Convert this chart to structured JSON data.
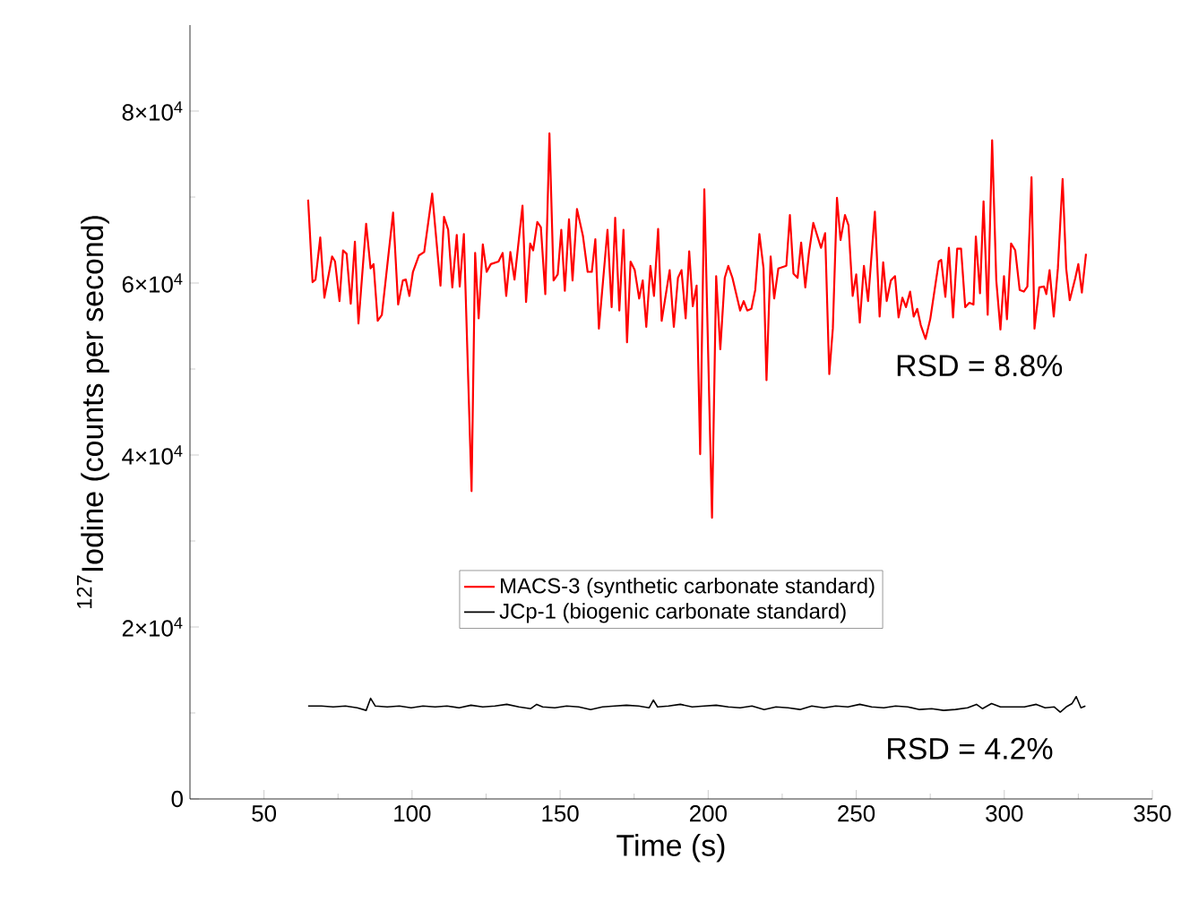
{
  "chart_data": {
    "type": "line",
    "xlabel": "Time (s)",
    "ylabel": "$^{127}$Iodine (counts per second)",
    "xlim": [
      25,
      350
    ],
    "ylim": [
      0,
      90000
    ],
    "xticks": [
      50,
      100,
      150,
      200,
      250,
      300,
      350
    ],
    "yticks": [
      0,
      {
        "value": 20000,
        "label": "2×10$^{4}$"
      },
      {
        "value": 40000,
        "label": "4×10$^{4}$"
      },
      {
        "value": 60000,
        "label": "6×10$^{4}$"
      },
      {
        "value": 80000,
        "label": "8×10$^{4}$"
      }
    ],
    "legend": "bottom",
    "series": [
      {
        "name": "MACS-3 (synthetic carbonate standard)",
        "color": "#ff0000",
        "x": [
          64.9,
          66.4,
          67.4,
          69.0,
          70.4,
          73.0,
          74.0,
          75.5,
          76.7,
          77.9,
          79.3,
          80.7,
          81.9,
          84.5,
          86.0,
          87.0,
          88.4,
          89.8,
          93.6,
          95.3,
          96.9,
          97.9,
          99.1,
          100.3,
          102.3,
          104.1,
          106.8,
          109.6,
          110.8,
          112.2,
          113.6,
          115.1,
          116.1,
          117.5,
          120.1,
          121.3,
          122.5,
          123.9,
          125.2,
          126.6,
          129.2,
          130.6,
          131.8,
          133.2,
          134.6,
          137.3,
          138.5,
          139.9,
          140.9,
          142.3,
          143.5,
          145.0,
          146.4,
          147.8,
          149.2,
          150.4,
          151.6,
          153.0,
          154.2,
          155.7,
          157.7,
          159.3,
          160.7,
          161.9,
          163.1,
          166.0,
          167.4,
          168.6,
          170.0,
          171.4,
          172.6,
          173.8,
          175.2,
          176.7,
          177.9,
          179.1,
          180.5,
          181.7,
          183.1,
          184.3,
          187.0,
          188.4,
          189.8,
          191.0,
          192.4,
          193.6,
          194.8,
          196.1,
          197.3,
          198.7,
          201.3,
          202.7,
          204.1,
          205.6,
          206.8,
          208.2,
          210.8,
          212.0,
          213.2,
          214.6,
          215.9,
          217.3,
          218.7,
          219.7,
          221.1,
          222.3,
          223.7,
          226.4,
          227.6,
          228.8,
          230.2,
          231.4,
          232.8,
          234.0,
          235.5,
          238.1,
          239.5,
          240.9,
          242.1,
          243.5,
          244.7,
          246.2,
          247.4,
          248.8,
          250.0,
          251.2,
          252.6,
          254.0,
          256.3,
          257.9,
          259.1,
          260.3,
          261.7,
          263.1,
          264.3,
          265.6,
          266.8,
          268.2,
          269.4,
          270.6,
          271.8,
          273.4,
          275.0,
          277.9,
          278.7,
          280.1,
          281.3,
          282.7,
          284.1,
          285.4,
          286.8,
          288.2,
          289.6,
          290.4,
          291.8,
          293.0,
          294.4,
          295.9,
          297.3,
          298.7,
          299.9,
          300.9,
          302.3,
          303.7,
          305.2,
          306.6,
          307.8,
          309.2,
          310.2,
          311.8,
          313.4,
          314.2,
          315.3,
          316.7,
          318.1,
          319.7,
          320.9,
          322.1,
          324.0,
          325.0,
          326.2,
          327.6
        ],
        "values": [
          69700,
          60100,
          60400,
          65300,
          58300,
          63100,
          62500,
          57900,
          63800,
          63400,
          57600,
          64800,
          55300,
          66900,
          61700,
          62200,
          55600,
          56300,
          68200,
          57500,
          60300,
          60400,
          58500,
          61300,
          63200,
          63600,
          70400,
          59700,
          67700,
          66200,
          59500,
          65600,
          59600,
          65700,
          35800,
          63500,
          55900,
          64500,
          61300,
          62200,
          62500,
          63500,
          58500,
          63600,
          60400,
          69000,
          57800,
          64600,
          63800,
          67100,
          66500,
          58700,
          77400,
          60300,
          61000,
          66200,
          59100,
          67400,
          60300,
          68600,
          65500,
          61300,
          61300,
          65100,
          54700,
          66200,
          57200,
          67600,
          56800,
          66200,
          53100,
          62500,
          61500,
          58200,
          60300,
          54900,
          62000,
          58500,
          66300,
          55600,
          61500,
          54900,
          60600,
          61500,
          55900,
          63700,
          57300,
          59700,
          40100,
          70900,
          32700,
          60800,
          52300,
          60600,
          62000,
          60600,
          56800,
          57900,
          56800,
          57000,
          59200,
          65700,
          61700,
          48700,
          63100,
          58200,
          61700,
          62000,
          67900,
          61100,
          60600,
          64700,
          59500,
          63400,
          67000,
          64100,
          65800,
          49400,
          54700,
          69900,
          65000,
          67900,
          66700,
          58500,
          61000,
          55400,
          62000,
          57900,
          68300,
          56100,
          62400,
          57900,
          60300,
          60800,
          56000,
          58300,
          57200,
          59000,
          56100,
          57000,
          55100,
          53500,
          55800,
          62500,
          62700,
          58400,
          64100,
          56000,
          64000,
          64000,
          57200,
          57700,
          57500,
          65400,
          58800,
          69500,
          56300,
          76600,
          60300,
          54600,
          60800,
          55800,
          64600,
          63800,
          59200,
          59000,
          59600,
          72300,
          54700,
          59500,
          59600,
          58700,
          61500,
          56100,
          61700,
          72100,
          61700,
          58000,
          60600,
          62200,
          58900,
          63400
        ]
      },
      {
        "name": "JCp-1 (biogenic carbonate standard)",
        "color": "#000000",
        "x": [
          64.9,
          69.4,
          73.4,
          77.5,
          81.5,
          84.5,
          86.0,
          87.6,
          91.6,
          95.7,
          99.7,
          103.7,
          107.8,
          111.8,
          115.9,
          119.9,
          123.9,
          128.0,
          132.0,
          136.1,
          140.1,
          142.1,
          144.1,
          148.2,
          152.2,
          156.3,
          160.3,
          164.3,
          168.4,
          172.4,
          176.5,
          180.1,
          181.5,
          182.9,
          186.6,
          190.6,
          194.6,
          198.7,
          202.7,
          206.8,
          210.8,
          214.8,
          218.9,
          222.9,
          227.0,
          231.0,
          235.0,
          239.1,
          243.1,
          247.2,
          251.2,
          255.2,
          259.3,
          263.3,
          267.4,
          271.4,
          275.5,
          279.5,
          283.5,
          287.6,
          290.6,
          292.6,
          295.7,
          298.7,
          302.7,
          306.8,
          310.8,
          313.8,
          316.9,
          318.9,
          320.9,
          322.9,
          324.3,
          325.9,
          327.4
        ],
        "values": [
          10800,
          10800,
          10700,
          10800,
          10600,
          10300,
          11700,
          10800,
          10700,
          10800,
          10600,
          10800,
          10700,
          10800,
          10600,
          10900,
          10700,
          10800,
          11000,
          10700,
          10500,
          11000,
          10700,
          10600,
          10800,
          10700,
          10400,
          10700,
          10800,
          10900,
          10800,
          10600,
          11500,
          10700,
          10800,
          11000,
          10700,
          10800,
          10900,
          10700,
          10600,
          10800,
          10400,
          10700,
          10600,
          10400,
          10800,
          10600,
          10800,
          10700,
          11000,
          10700,
          10600,
          10800,
          10700,
          10400,
          10500,
          10300,
          10400,
          10600,
          11000,
          10500,
          11100,
          10700,
          10700,
          10700,
          11000,
          10600,
          10700,
          10100,
          10700,
          11100,
          11900,
          10600,
          10800
        ]
      }
    ],
    "annotations": [
      "RSD = 8.8%",
      "RSD = 4.2%"
    ]
  }
}
